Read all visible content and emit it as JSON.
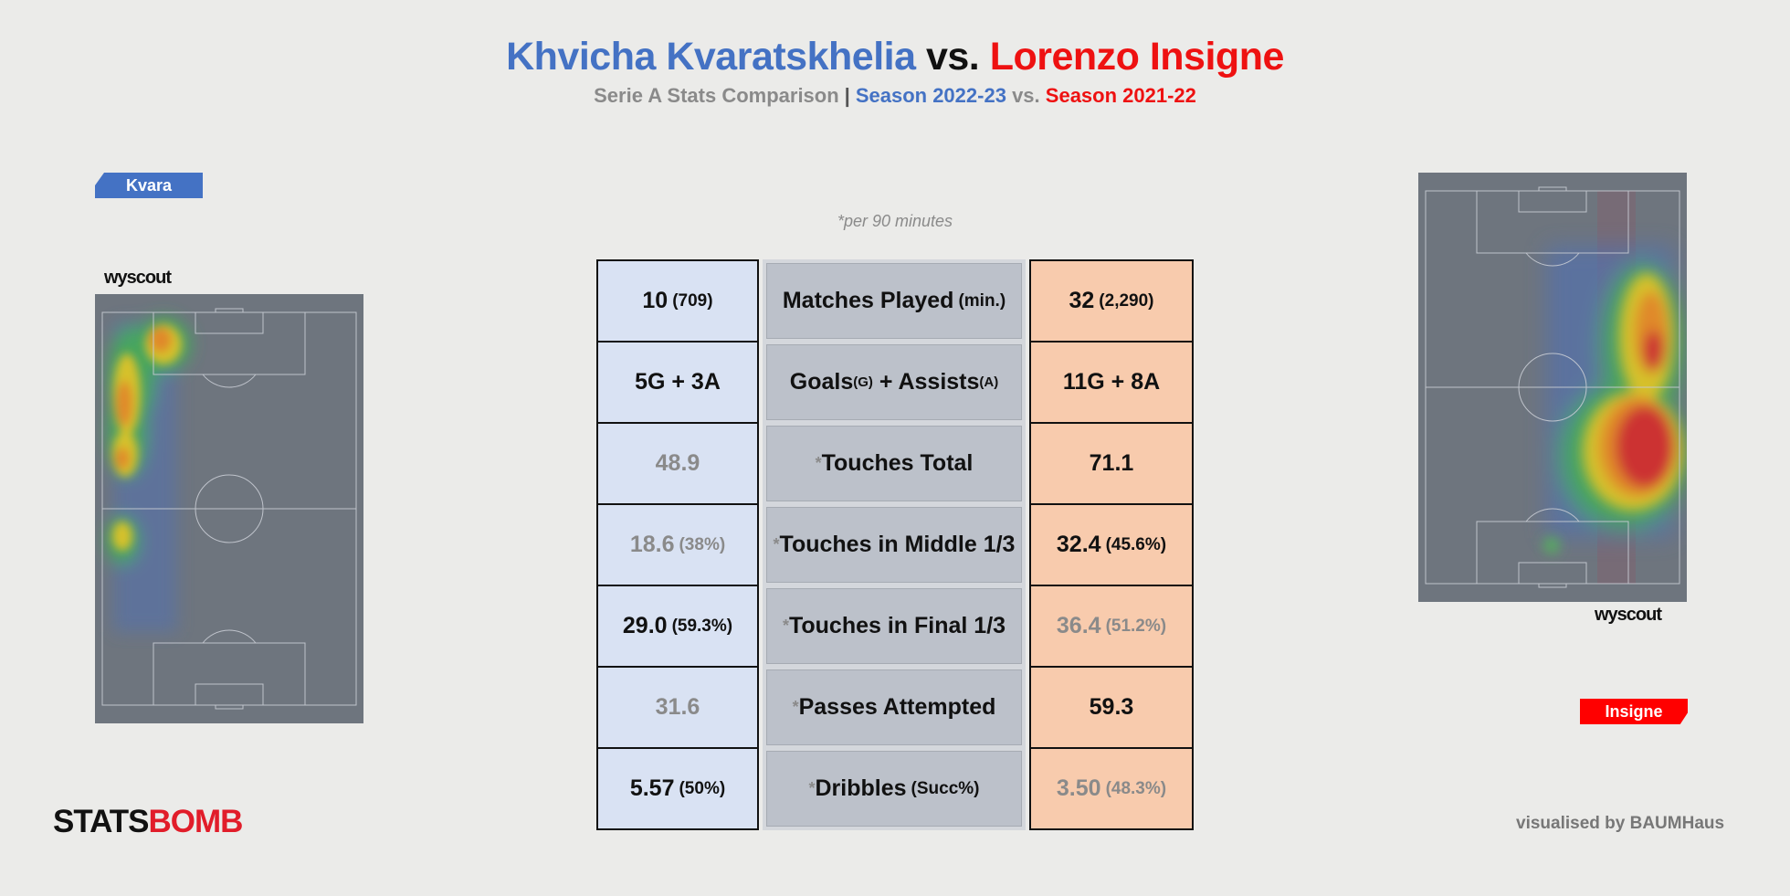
{
  "header": {
    "player_a": "Khvicha Kvaratskhelia",
    "vs": "vs.",
    "player_b": "Lorenzo Insigne",
    "subtitle_lead": "Serie A Stats Comparison",
    "subtitle_sep": "|",
    "season_a": "Season 2022-23",
    "subtitle_vs": "vs.",
    "season_b": "Season 2021-22",
    "note": "*per 90 minutes"
  },
  "tags": {
    "left": "Kvara",
    "right": "Insigne"
  },
  "provider": {
    "left": "wyscout",
    "right": "wyscout"
  },
  "colors": {
    "player_a": "#4472c4",
    "player_b": "#ee1111",
    "table_left": "#d9e2f3",
    "table_right": "#f8cbad",
    "table_mid": "#bcc1ca"
  },
  "rows": [
    {
      "star": "",
      "label": "Matches Played",
      "label_sub": "(min.)",
      "label_sub2": "",
      "label_tail": "",
      "a": "10",
      "a_sub": "(709)",
      "b": "32",
      "b_sub": "(2,290)"
    },
    {
      "star": "",
      "label": "Goals",
      "label_sub": "(G)",
      "label_mid": " + Assists",
      "label_sub2": "(A)",
      "a": "5G + 3A",
      "a_sub": "",
      "b": "11G + 8A",
      "b_sub": ""
    },
    {
      "star": "*",
      "label": "Touches Total",
      "label_sub": "",
      "a": "48.9",
      "a_sub": "",
      "b": "71.1",
      "b_sub": ""
    },
    {
      "star": "*",
      "label": "Touches in Middle 1/3",
      "label_sub": "",
      "a": "18.6",
      "a_sub": "(38%)",
      "b": "32.4",
      "b_sub": "(45.6%)"
    },
    {
      "star": "*",
      "label": "Touches in Final 1/3",
      "label_sub": "",
      "a": "29.0",
      "a_sub": "(59.3%)",
      "b": "36.4",
      "b_sub": "(51.2%)"
    },
    {
      "star": "*",
      "label": "Passes Attempted",
      "label_sub": "",
      "a": "31.6",
      "a_sub": "",
      "b": "59.3",
      "b_sub": ""
    },
    {
      "star": "*",
      "label": "Dribbles",
      "label_sub": "(Succ%)",
      "a": "5.57",
      "a_sub": "(50%)",
      "b": "3.50",
      "b_sub": "(48.3%)"
    }
  ],
  "footer": {
    "logo_a": "STATS",
    "logo_b": "BOMB",
    "credit": "visualised by BAUMHaus"
  }
}
